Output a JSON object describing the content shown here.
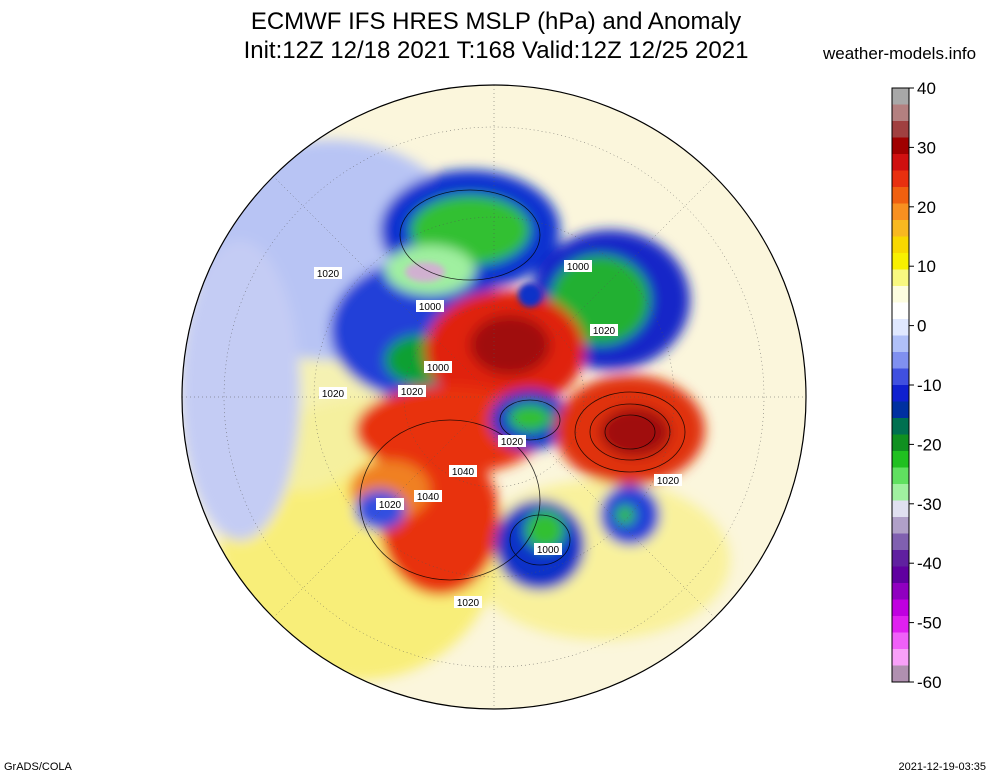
{
  "title": {
    "line1": "ECMWF IFS HRES MSLP (hPa) and Anomaly",
    "line2": "Init:12Z 12/18 2021 T:168 Valid:12Z 12/25 2021"
  },
  "site": "weather-models.info",
  "footer": {
    "left": "GrADS/COLA",
    "right": "2021-12-19-03:35"
  },
  "colorbar": {
    "ticks": [
      "40",
      "30",
      "20",
      "10",
      "0",
      "-10",
      "-20",
      "-30",
      "-40",
      "-50",
      "-60"
    ],
    "colors": [
      "#a8a8a8",
      "#b38080",
      "#a04040",
      "#a00000",
      "#d01010",
      "#e83010",
      "#f06010",
      "#f89020",
      "#f8b820",
      "#f8d800",
      "#f8f000",
      "#f8f880",
      "#fdfde0",
      "#ffffff",
      "#e0e8ff",
      "#b0c0f8",
      "#8090f0",
      "#4050e0",
      "#1020d0",
      "#0030a0",
      "#007050",
      "#109020",
      "#20c020",
      "#60e060",
      "#a0f0a0",
      "#e0e0f0",
      "#b0a0c8",
      "#8060b0",
      "#6020a0",
      "#6000a0",
      "#9000c0",
      "#c000e0",
      "#e020f0",
      "#f060f8",
      "#f8a0f8",
      "#b090b0"
    ]
  },
  "contour_labels": [
    {
      "text": "1020"
    },
    {
      "text": "1000"
    },
    {
      "text": "1000"
    },
    {
      "text": "1020"
    },
    {
      "text": "1000"
    },
    {
      "text": "1020"
    },
    {
      "text": "1020"
    },
    {
      "text": "1020"
    },
    {
      "text": "1040"
    },
    {
      "text": "1040"
    },
    {
      "text": "1020"
    },
    {
      "text": "1020"
    },
    {
      "text": "1020"
    },
    {
      "text": "1000"
    }
  ]
}
